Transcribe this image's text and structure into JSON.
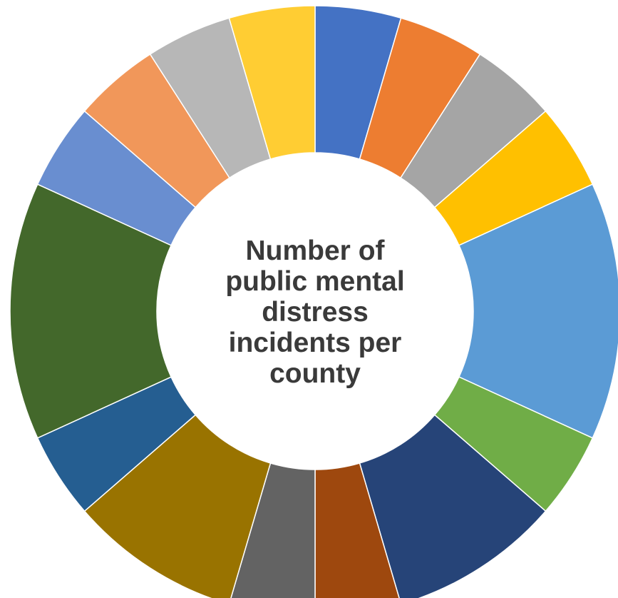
{
  "chart_data": {
    "type": "pie",
    "subtype": "donut",
    "center_label_lines": [
      "Number of",
      "public mental",
      "distress",
      "incidents per",
      "county"
    ],
    "legend": "none",
    "data_labels": "none",
    "slices": [
      {
        "value": 1,
        "color": "#4472C4"
      },
      {
        "value": 1,
        "color": "#ED7D31"
      },
      {
        "value": 1,
        "color": "#A5A5A5"
      },
      {
        "value": 1,
        "color": "#FFC000"
      },
      {
        "value": 3,
        "color": "#5B9BD5"
      },
      {
        "value": 1,
        "color": "#70AD47"
      },
      {
        "value": 2,
        "color": "#264478"
      },
      {
        "value": 1,
        "color": "#9E480E"
      },
      {
        "value": 1,
        "color": "#636363"
      },
      {
        "value": 2,
        "color": "#997300"
      },
      {
        "value": 1,
        "color": "#255E91"
      },
      {
        "value": 3,
        "color": "#43682B"
      },
      {
        "value": 1,
        "color": "#698ED0"
      },
      {
        "value": 1,
        "color": "#F1975A"
      },
      {
        "value": 1,
        "color": "#B7B7B7"
      },
      {
        "value": 1,
        "color": "#FFCD33"
      }
    ]
  }
}
